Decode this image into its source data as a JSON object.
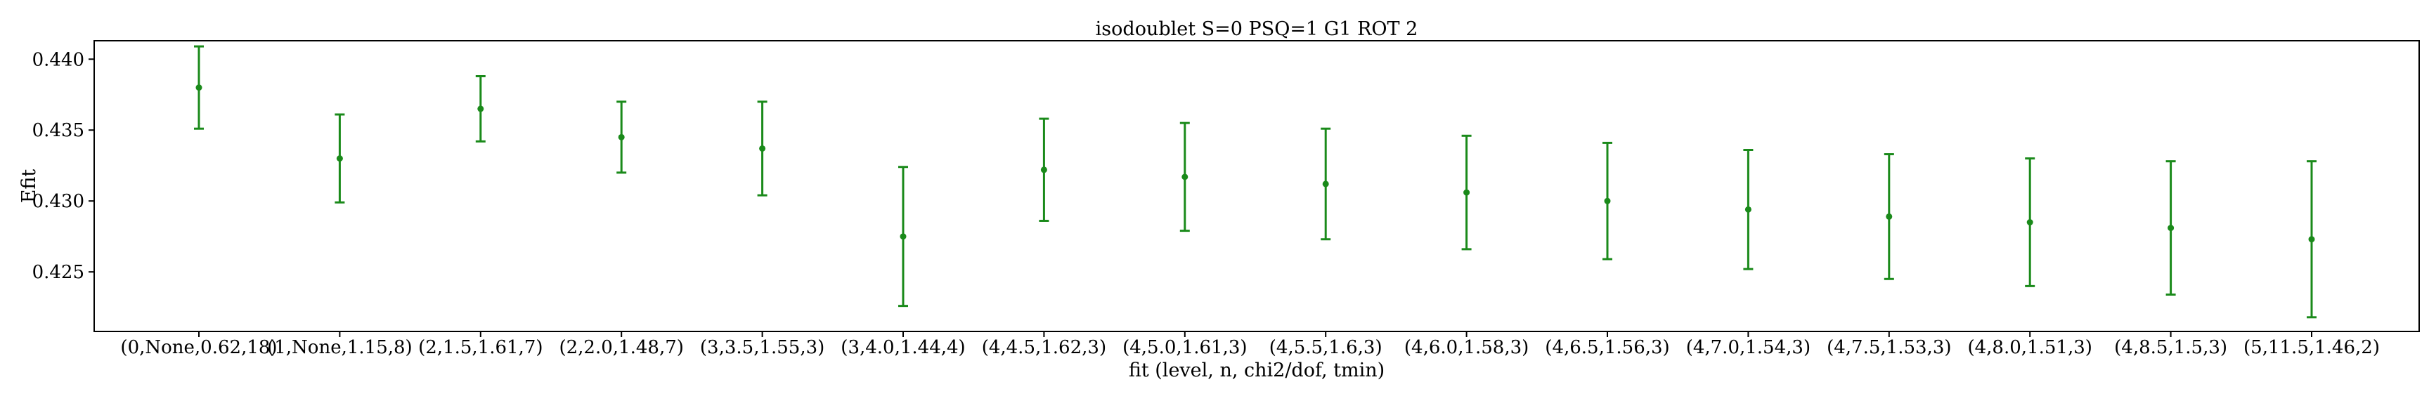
{
  "chart_data": {
    "type": "scatter",
    "title": "isodoublet S=0 PSQ=1 G1 ROT 2",
    "xlabel": "fit (level, n, chi2/dof, tmin)",
    "ylabel": "Efit",
    "ylim": [
      0.4208,
      0.4413
    ],
    "yticks": [
      0.425,
      0.43,
      0.435,
      0.44
    ],
    "ytick_labels": [
      "0.425",
      "0.430",
      "0.435",
      "0.440"
    ],
    "grid": false,
    "marker_color": "#1a8a1a",
    "categories": [
      "(0,None,0.62,18)",
      "(1,None,1.15,8)",
      "(2,1.5,1.61,7)",
      "(2,2.0,1.48,7)",
      "(3,3.5,1.55,3)",
      "(3,4.0,1.44,4)",
      "(4,4.5,1.62,3)",
      "(4,5.0,1.61,3)",
      "(4,5.5,1.6,3)",
      "(4,6.0,1.58,3)",
      "(4,6.5,1.56,3)",
      "(4,7.0,1.54,3)",
      "(4,7.5,1.53,3)",
      "(4,8.0,1.51,3)",
      "(4,8.5,1.5,3)",
      "(5,11.5,1.46,2)"
    ],
    "values": [
      0.438,
      0.433,
      0.4365,
      0.4345,
      0.4337,
      0.4275,
      0.4322,
      0.4317,
      0.4312,
      0.4306,
      0.43,
      0.4294,
      0.4289,
      0.4285,
      0.4281,
      0.4273
    ],
    "errors": [
      0.0029,
      0.0031,
      0.0023,
      0.0025,
      0.0033,
      0.0049,
      0.0036,
      0.0038,
      0.0039,
      0.004,
      0.0041,
      0.0042,
      0.0044,
      0.0045,
      0.0047,
      0.0055
    ]
  }
}
